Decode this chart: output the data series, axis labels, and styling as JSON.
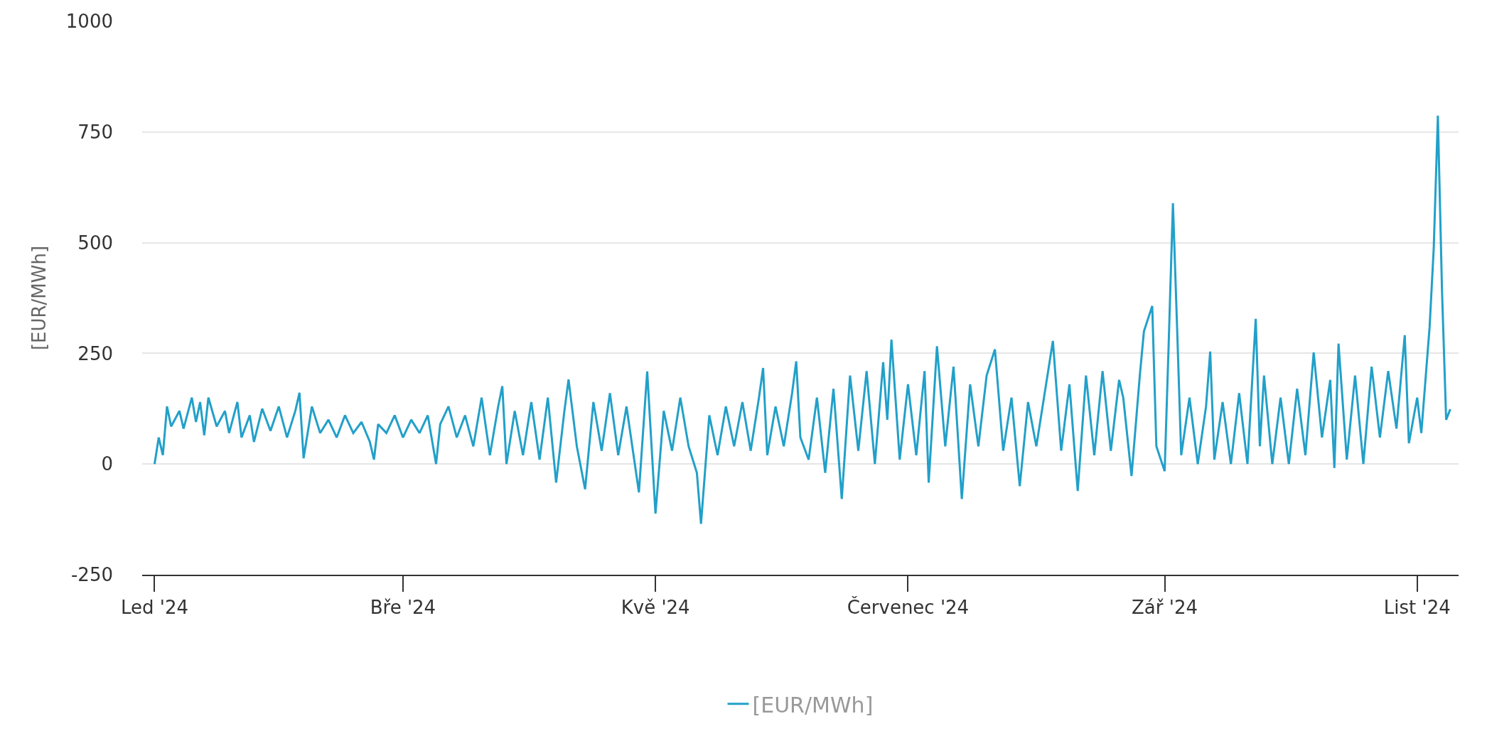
{
  "chart_data": {
    "type": "line",
    "ylabel": "[EUR/MWh]",
    "xlim": [
      "2023-12-29",
      "2024-11-11"
    ],
    "ylim": [
      -250,
      1000
    ],
    "xticks": [
      {
        "value": "2024-01-01",
        "label": "Led '24"
      },
      {
        "value": "2024-03-01",
        "label": "Bře '24"
      },
      {
        "value": "2024-05-01",
        "label": "Kvě '24"
      },
      {
        "value": "2024-07-01",
        "label": "Červenec '24"
      },
      {
        "value": "2024-09-01",
        "label": "Zář '24"
      },
      {
        "value": "2024-11-01",
        "label": "List '24"
      }
    ],
    "yticks": [
      -250,
      0,
      250,
      500,
      750,
      1000
    ],
    "grid": "y",
    "legend": "bottom",
    "x": [
      "2024-01-01",
      "2024-01-02",
      "2024-01-03",
      "2024-01-04",
      "2024-01-05",
      "2024-01-07",
      "2024-01-08",
      "2024-01-10",
      "2024-01-11",
      "2024-01-12",
      "2024-01-13",
      "2024-01-14",
      "2024-01-16",
      "2024-01-18",
      "2024-01-19",
      "2024-01-21",
      "2024-01-22",
      "2024-01-24",
      "2024-01-25",
      "2024-01-27",
      "2024-01-29",
      "2024-01-31",
      "2024-02-02",
      "2024-02-04",
      "2024-02-05",
      "2024-02-06",
      "2024-02-08",
      "2024-02-10",
      "2024-02-12",
      "2024-02-14",
      "2024-02-16",
      "2024-02-18",
      "2024-02-20",
      "2024-02-22",
      "2024-02-23",
      "2024-02-24",
      "2024-02-26",
      "2024-02-28",
      "2024-03-01",
      "2024-03-03",
      "2024-03-05",
      "2024-03-07",
      "2024-03-09",
      "2024-03-10",
      "2024-03-12",
      "2024-03-14",
      "2024-03-16",
      "2024-03-18",
      "2024-03-20",
      "2024-03-22",
      "2024-03-24",
      "2024-03-25",
      "2024-03-26",
      "2024-03-28",
      "2024-03-30",
      "2024-04-01",
      "2024-04-03",
      "2024-04-05",
      "2024-04-07",
      "2024-04-09",
      "2024-04-10",
      "2024-04-12",
      "2024-04-14",
      "2024-04-16",
      "2024-04-18",
      "2024-04-20",
      "2024-04-22",
      "2024-04-24",
      "2024-04-27",
      "2024-04-29",
      "2024-05-01",
      "2024-05-03",
      "2024-05-05",
      "2024-05-07",
      "2024-05-09",
      "2024-05-11",
      "2024-05-12",
      "2024-05-14",
      "2024-05-16",
      "2024-05-18",
      "2024-05-20",
      "2024-05-22",
      "2024-05-24",
      "2024-05-26",
      "2024-05-27",
      "2024-05-28",
      "2024-05-30",
      "2024-06-01",
      "2024-06-03",
      "2024-06-04",
      "2024-06-05",
      "2024-06-07",
      "2024-06-09",
      "2024-06-11",
      "2024-06-13",
      "2024-06-15",
      "2024-06-17",
      "2024-06-19",
      "2024-06-21",
      "2024-06-23",
      "2024-06-25",
      "2024-06-26",
      "2024-06-27",
      "2024-06-29",
      "2024-07-01",
      "2024-07-03",
      "2024-07-05",
      "2024-07-06",
      "2024-07-08",
      "2024-07-10",
      "2024-07-12",
      "2024-07-14",
      "2024-07-16",
      "2024-07-18",
      "2024-07-20",
      "2024-07-22",
      "2024-07-24",
      "2024-07-26",
      "2024-07-28",
      "2024-07-30",
      "2024-08-01",
      "2024-08-05",
      "2024-08-07",
      "2024-08-09",
      "2024-08-11",
      "2024-08-13",
      "2024-08-15",
      "2024-08-17",
      "2024-08-19",
      "2024-08-21",
      "2024-08-22",
      "2024-08-24",
      "2024-08-26",
      "2024-08-27",
      "2024-08-29",
      "2024-08-30",
      "2024-09-01",
      "2024-09-02",
      "2024-09-03",
      "2024-09-04",
      "2024-09-05",
      "2024-09-07",
      "2024-09-09",
      "2024-09-11",
      "2024-09-12",
      "2024-09-13",
      "2024-09-15",
      "2024-09-17",
      "2024-09-19",
      "2024-09-21",
      "2024-09-23",
      "2024-09-24",
      "2024-09-25",
      "2024-09-27",
      "2024-09-29",
      "2024-10-01",
      "2024-10-03",
      "2024-10-05",
      "2024-10-07",
      "2024-10-09",
      "2024-10-11",
      "2024-10-12",
      "2024-10-13",
      "2024-10-15",
      "2024-10-17",
      "2024-10-19",
      "2024-10-21",
      "2024-10-23",
      "2024-10-25",
      "2024-10-27",
      "2024-10-29",
      "2024-10-30",
      "2024-11-01",
      "2024-11-02",
      "2024-11-04",
      "2024-11-05",
      "2024-11-06",
      "2024-11-07",
      "2024-11-08",
      "2024-11-09"
    ],
    "series": [
      {
        "name": "[EUR/MWh]",
        "color": "#22a0c9",
        "values": [
          0,
          60,
          20,
          130,
          85,
          120,
          80,
          150,
          95,
          140,
          65,
          150,
          85,
          120,
          70,
          140,
          60,
          110,
          50,
          125,
          75,
          130,
          60,
          120,
          161,
          13,
          130,
          70,
          100,
          60,
          110,
          70,
          95,
          50,
          10,
          90,
          70,
          110,
          60,
          100,
          70,
          110,
          0,
          90,
          130,
          60,
          110,
          40,
          150,
          20,
          130,
          176,
          0,
          120,
          20,
          140,
          10,
          150,
          -42,
          120,
          191,
          40,
          -57,
          140,
          30,
          160,
          20,
          130,
          -64,
          209,
          -112,
          120,
          30,
          150,
          40,
          -20,
          -135,
          110,
          20,
          130,
          40,
          140,
          30,
          150,
          217,
          20,
          130,
          40,
          160,
          232,
          60,
          10,
          150,
          -20,
          170,
          -79,
          200,
          30,
          210,
          0,
          230,
          100,
          281,
          10,
          180,
          20,
          210,
          -42,
          266,
          40,
          220,
          -79,
          180,
          40,
          200,
          259,
          30,
          150,
          -50,
          140,
          40,
          278,
          30,
          180,
          -61,
          200,
          20,
          210,
          30,
          190,
          150,
          -27,
          200,
          300,
          357,
          40,
          -16,
          280,
          589,
          310,
          20,
          150,
          0,
          130,
          254,
          10,
          140,
          0,
          160,
          0,
          328,
          40,
          200,
          0,
          150,
          0,
          170,
          20,
          252,
          60,
          190,
          -9,
          272,
          10,
          200,
          0,
          220,
          60,
          210,
          80,
          291,
          47,
          150,
          70,
          309,
          487,
          787,
          392,
          100,
          124
        ]
      }
    ]
  }
}
